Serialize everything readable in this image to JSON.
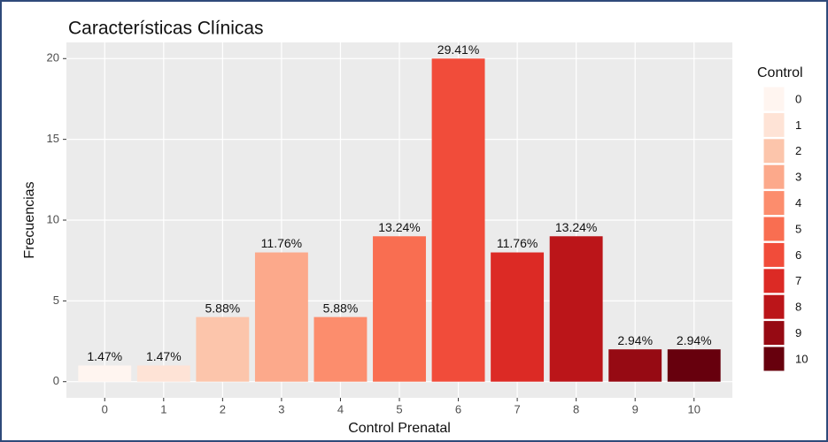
{
  "chart_data": {
    "type": "bar",
    "title": "Características Clínicas",
    "x_label": "Control Prenatal",
    "y_label": "Frecuencias",
    "categories": [
      "0",
      "1",
      "2",
      "3",
      "4",
      "5",
      "6",
      "7",
      "8",
      "9",
      "10"
    ],
    "values": [
      1,
      1,
      4,
      8,
      4,
      9,
      20,
      8,
      9,
      2,
      2
    ],
    "annotations": [
      "1.47%",
      "1.47%",
      "5.88%",
      "11.76%",
      "5.88%",
      "13.24%",
      "29.41%",
      "11.76%",
      "13.24%",
      "2.94%",
      "2.94%"
    ],
    "colors": [
      "#fff5f0",
      "#fee3d6",
      "#fcc5ab",
      "#fca98b",
      "#fc8d6d",
      "#f96e51",
      "#f14c3a",
      "#dc2a25",
      "#bb1519",
      "#960a13",
      "#67000d"
    ],
    "legend_title": "Control",
    "ylim": [
      -1,
      21
    ],
    "yticks": [
      0,
      5,
      10,
      15,
      20
    ],
    "grid": true
  }
}
